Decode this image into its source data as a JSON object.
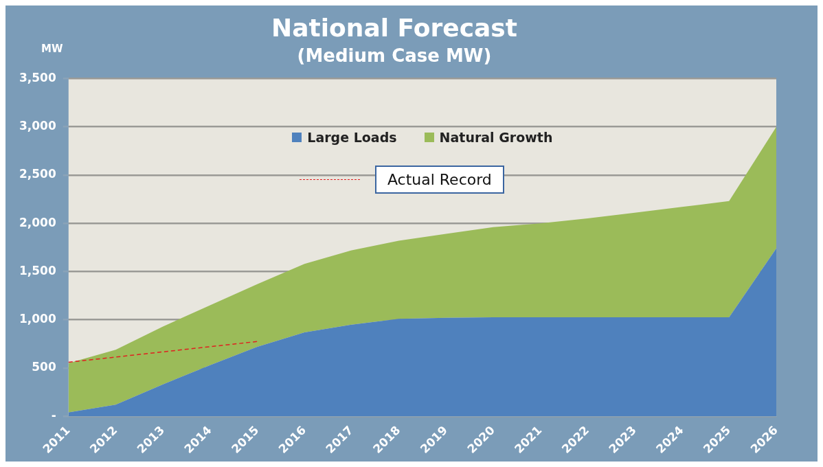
{
  "chart_data": {
    "type": "area",
    "title": "National Forecast",
    "subtitle": "(Medium Case MW)",
    "ylabel": "MW",
    "stacked": true,
    "categories": [
      "2011",
      "2012",
      "2013",
      "2014",
      "2015",
      "2016",
      "2017",
      "2018",
      "2019",
      "2020",
      "2021",
      "2022",
      "2023",
      "2024",
      "2025",
      "2026"
    ],
    "series": [
      {
        "name": "Large Loads",
        "color": "#4f81bd",
        "values": [
          40,
          120,
          330,
          530,
          720,
          870,
          950,
          1010,
          1020,
          1025,
          1025,
          1025,
          1025,
          1025,
          1025,
          1740
        ]
      },
      {
        "name": "Natural Growth",
        "color": "#9bbb59",
        "values": [
          510,
          570,
          600,
          620,
          650,
          710,
          770,
          810,
          870,
          935,
          975,
          1025,
          1085,
          1145,
          1205,
          1260
        ]
      },
      {
        "name": "Actual Record",
        "type": "line",
        "line_style": "dashed",
        "color": "#e02020",
        "values": [
          560,
          null,
          null,
          null,
          775,
          null,
          null,
          null,
          null,
          null,
          null,
          null,
          null,
          null,
          null,
          null
        ]
      }
    ],
    "ylim": [
      0,
      3500
    ],
    "yticks": [
      {
        "value": 0,
        "label": "-"
      },
      500,
      {
        "value": 1000,
        "label": "1,000"
      },
      {
        "value": 1500,
        "label": "1,500"
      },
      {
        "value": 2000,
        "label": "2,000"
      },
      {
        "value": 2500,
        "label": "2,500"
      },
      {
        "value": 3000,
        "label": "3,000"
      },
      {
        "value": 3500,
        "label": "3,500"
      }
    ],
    "grid": "y",
    "legend": "top",
    "marker": "none"
  }
}
